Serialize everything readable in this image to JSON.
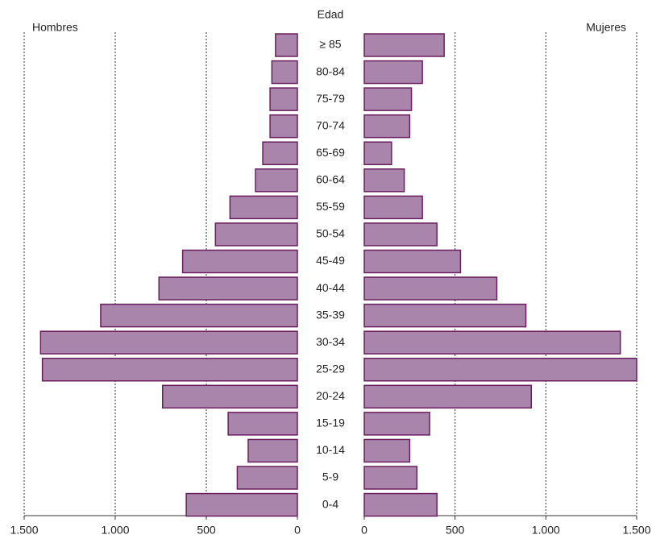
{
  "chart_data": {
    "type": "pyramid",
    "category_label": "Edad",
    "categories": [
      "≥ 85",
      "80-84",
      "75-79",
      "70-74",
      "65-69",
      "60-64",
      "55-59",
      "50-54",
      "45-49",
      "40-44",
      "35-39",
      "30-34",
      "25-29",
      "20-24",
      "15-19",
      "10-14",
      "5-9",
      "0-4"
    ],
    "series": [
      {
        "name": "Hombres",
        "color": "#a985ac",
        "values": [
          120,
          140,
          150,
          150,
          190,
          230,
          370,
          450,
          630,
          760,
          1080,
          1410,
          1400,
          740,
          380,
          270,
          330,
          610
        ]
      },
      {
        "name": "Mujeres",
        "color": "#a985ac",
        "values": [
          440,
          320,
          260,
          250,
          150,
          220,
          320,
          400,
          530,
          730,
          890,
          1410,
          1500,
          920,
          360,
          250,
          290,
          400
        ]
      }
    ],
    "xlim": [
      0,
      1500
    ],
    "xticks": [
      0,
      500,
      {
        "value": 1000,
        "label": "1.000"
      },
      {
        "value": 1500,
        "label": "1.500"
      }
    ],
    "grid": true
  }
}
